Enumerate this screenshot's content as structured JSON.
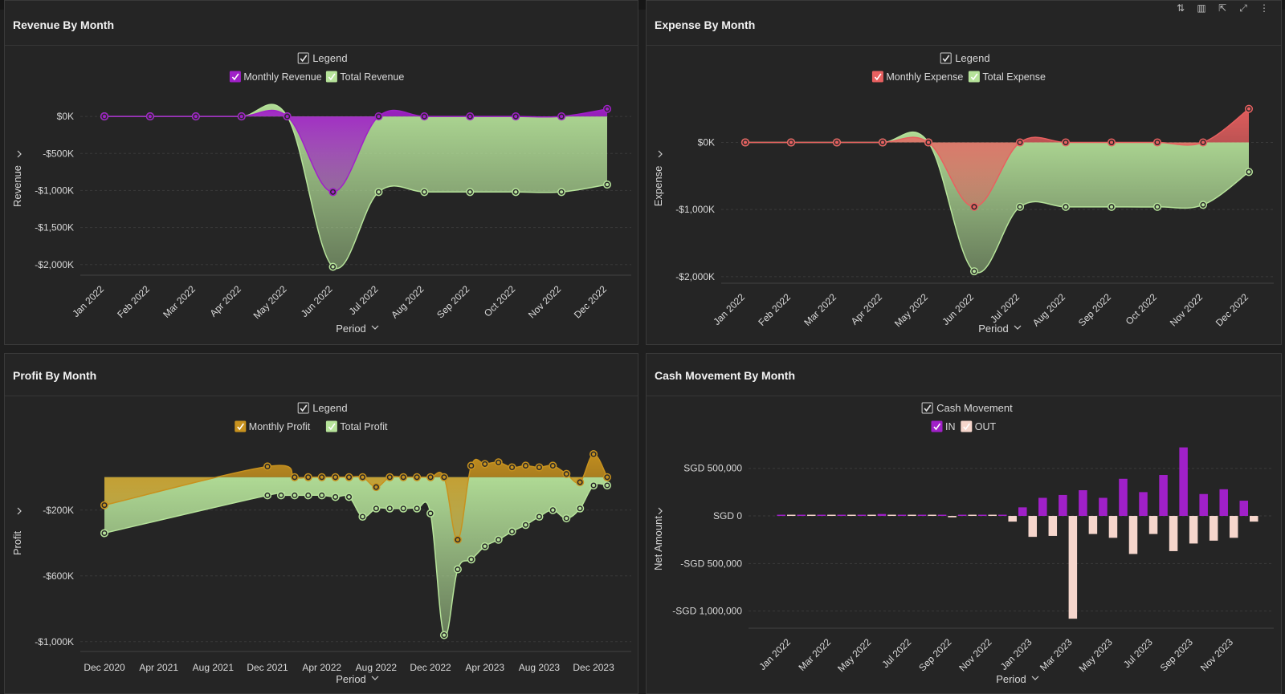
{
  "colors": {
    "purple": "#a020c8",
    "green": "#b6e39a",
    "red": "#e86060",
    "gold": "#c8921e",
    "peach": "#f6d6cc",
    "grid": "#3a3a3a",
    "axisText": "#d8d8d8"
  },
  "toolbar": {
    "icons": [
      "sort-icon",
      "bar-chart-icon",
      "export-icon",
      "expand-icon",
      "more-icon"
    ]
  },
  "chart_data": [
    {
      "id": "revenue",
      "type": "area",
      "title": "Revenue By Month",
      "legend_title": "Legend",
      "xlabel": "Period",
      "ylabel": "Revenue",
      "categories": [
        "Jan 2022",
        "Feb 2022",
        "Mar 2022",
        "Apr 2022",
        "May 2022",
        "Jun 2022",
        "Jul 2022",
        "Aug 2022",
        "Sep 2022",
        "Oct 2022",
        "Nov 2022",
        "Dec 2022"
      ],
      "yticks": [
        0,
        -500,
        -1000,
        -1500,
        -2000
      ],
      "ytick_labels": [
        "$0K",
        "-$500K",
        "-$1,000K",
        "-$1,500K",
        "-$2,000K"
      ],
      "ylim": [
        -2100,
        120
      ],
      "series": [
        {
          "name": "Monthly Revenue",
          "color": "#a020c8",
          "values": [
            0,
            0,
            0,
            0,
            0,
            -1020,
            0,
            0,
            0,
            0,
            0,
            100
          ]
        },
        {
          "name": "Total Revenue",
          "color": "#b6e39a",
          "values": [
            0,
            0,
            0,
            0,
            0,
            -2030,
            -1020,
            -1020,
            -1020,
            -1020,
            -1020,
            -920
          ]
        }
      ]
    },
    {
      "id": "expense",
      "type": "area",
      "title": "Expense By Month",
      "legend_title": "Legend",
      "xlabel": "Period",
      "ylabel": "Expense",
      "categories": [
        "Jan 2022",
        "Feb 2022",
        "Mar 2022",
        "Apr 2022",
        "May 2022",
        "Jun 2022",
        "Jul 2022",
        "Aug 2022",
        "Sep 2022",
        "Oct 2022",
        "Nov 2022",
        "Dec 2022"
      ],
      "yticks": [
        0,
        -1000,
        -2000
      ],
      "ytick_labels": [
        "$0K",
        "-$1,000K",
        "-$2,000K"
      ],
      "ylim": [
        -2050,
        520
      ],
      "series": [
        {
          "name": "Monthly Expense",
          "color": "#e86060",
          "values": [
            0,
            0,
            0,
            0,
            0,
            -960,
            0,
            0,
            0,
            0,
            0,
            500
          ]
        },
        {
          "name": "Total Expense",
          "color": "#b6e39a",
          "values": [
            0,
            0,
            0,
            0,
            0,
            -1920,
            -960,
            -960,
            -960,
            -960,
            -930,
            -440
          ]
        }
      ]
    },
    {
      "id": "profit",
      "type": "area",
      "title": "Profit By Month",
      "legend_title": "Legend",
      "xlabel": "Period",
      "ylabel": "Profit",
      "xtick_labels": [
        "Dec 2020",
        "Apr 2021",
        "Aug 2021",
        "Dec 2021",
        "Apr 2022",
        "Aug 2022",
        "Dec 2022",
        "Apr 2023",
        "Aug 2023",
        "Dec 2023"
      ],
      "yticks": [
        -200,
        -600,
        -1000
      ],
      "ytick_labels": [
        "-$200K",
        "-$600K",
        "-$1,000K"
      ],
      "ylim": [
        -1040,
        160
      ],
      "x_index_start": 0,
      "series": [
        {
          "name": "Monthly Profit",
          "color": "#c8921e",
          "x": [
            0,
            12,
            14,
            15,
            16,
            17,
            18,
            19,
            20,
            21,
            22,
            23,
            24,
            25,
            26,
            27,
            28,
            29,
            30,
            31,
            32,
            33,
            34,
            35,
            36,
            37
          ],
          "values": [
            -170,
            65,
            0,
            0,
            0,
            0,
            0,
            0,
            -60,
            0,
            0,
            0,
            0,
            0,
            -380,
            70,
            80,
            90,
            60,
            70,
            60,
            70,
            20,
            -30,
            140,
            0
          ]
        },
        {
          "name": "Total Profit",
          "color": "#b6e39a",
          "x": [
            0,
            12,
            13,
            14,
            15,
            16,
            17,
            18,
            19,
            20,
            21,
            22,
            23,
            24,
            25,
            26,
            27,
            28,
            29,
            30,
            31,
            32,
            33,
            34,
            35,
            36,
            37
          ],
          "values": [
            -340,
            -110,
            -110,
            -110,
            -110,
            -110,
            -120,
            -120,
            -240,
            -190,
            -190,
            -190,
            -190,
            -220,
            -960,
            -560,
            -500,
            -420,
            -380,
            -330,
            -290,
            -240,
            -200,
            -250,
            -190,
            -50,
            -50
          ]
        }
      ]
    },
    {
      "id": "cash",
      "type": "bar",
      "title": "Cash Movement By Month",
      "legend_title": "Cash Movement",
      "xlabel": "Period",
      "ylabel": "Net Amount",
      "xtick_labels": [
        "Jan 2022",
        "Mar 2022",
        "May 2022",
        "Jul 2022",
        "Sep 2022",
        "Nov 2022",
        "Jan 2023",
        "Mar 2023",
        "May 2023",
        "Jul 2023",
        "Sep 2023",
        "Nov 2023"
      ],
      "yticks": [
        500000,
        0,
        -500000,
        -1000000
      ],
      "ytick_labels": [
        "SGD 500,000",
        "SGD 0",
        "-SGD 500,000",
        "-SGD 1,000,000"
      ],
      "ylim": [
        -1180000,
        700000
      ],
      "series": [
        {
          "name": "IN",
          "color": "#a020c8",
          "values": [
            5000,
            5000,
            5000,
            5000,
            10000,
            20000,
            5000,
            5000,
            5000,
            5000,
            5000,
            5000,
            90000,
            190000,
            220000,
            270000,
            190000,
            390000,
            250000,
            430000,
            720000,
            230000,
            280000,
            160000
          ]
        },
        {
          "name": "OUT",
          "color": "#f6d6cc",
          "values": [
            0,
            0,
            0,
            0,
            0,
            0,
            0,
            0,
            -15000,
            0,
            0,
            -60000,
            -220000,
            -210000,
            -1080000,
            -190000,
            -230000,
            -400000,
            -190000,
            -370000,
            -290000,
            -260000,
            -230000,
            -60000
          ]
        }
      ]
    }
  ]
}
